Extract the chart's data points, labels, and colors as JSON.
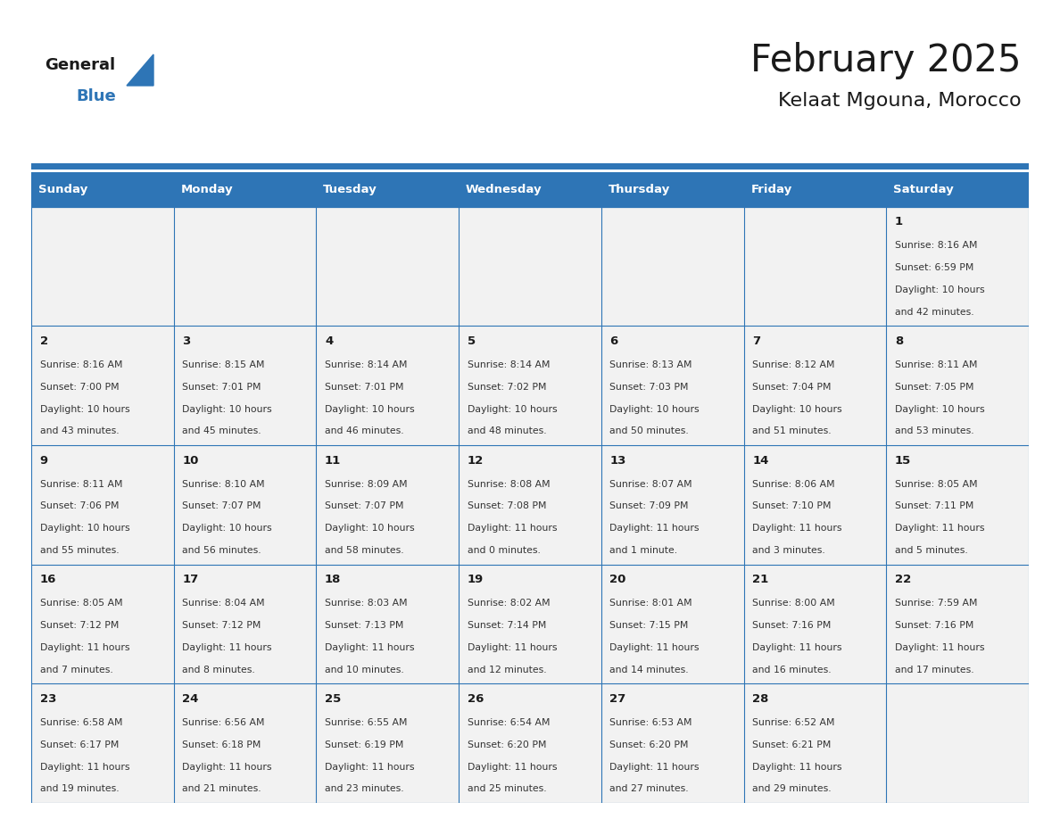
{
  "title": "February 2025",
  "subtitle": "Kelaat Mgouna, Morocco",
  "header_bg": "#2E75B6",
  "header_text": "#FFFFFF",
  "cell_bg": "#F2F2F2",
  "border_color": "#2E75B6",
  "day_headers": [
    "Sunday",
    "Monday",
    "Tuesday",
    "Wednesday",
    "Thursday",
    "Friday",
    "Saturday"
  ],
  "title_color": "#1a1a1a",
  "subtitle_color": "#1a1a1a",
  "day_number_color": "#1a1a1a",
  "cell_text_color": "#333333",
  "logo_general_color": "#1a1a1a",
  "logo_blue_color": "#2E75B6",
  "calendar_data": {
    "1": {
      "sunrise": "8:16 AM",
      "sunset": "6:59 PM",
      "daylight_line1": "Daylight: 10 hours",
      "daylight_line2": "and 42 minutes."
    },
    "2": {
      "sunrise": "8:16 AM",
      "sunset": "7:00 PM",
      "daylight_line1": "Daylight: 10 hours",
      "daylight_line2": "and 43 minutes."
    },
    "3": {
      "sunrise": "8:15 AM",
      "sunset": "7:01 PM",
      "daylight_line1": "Daylight: 10 hours",
      "daylight_line2": "and 45 minutes."
    },
    "4": {
      "sunrise": "8:14 AM",
      "sunset": "7:01 PM",
      "daylight_line1": "Daylight: 10 hours",
      "daylight_line2": "and 46 minutes."
    },
    "5": {
      "sunrise": "8:14 AM",
      "sunset": "7:02 PM",
      "daylight_line1": "Daylight: 10 hours",
      "daylight_line2": "and 48 minutes."
    },
    "6": {
      "sunrise": "8:13 AM",
      "sunset": "7:03 PM",
      "daylight_line1": "Daylight: 10 hours",
      "daylight_line2": "and 50 minutes."
    },
    "7": {
      "sunrise": "8:12 AM",
      "sunset": "7:04 PM",
      "daylight_line1": "Daylight: 10 hours",
      "daylight_line2": "and 51 minutes."
    },
    "8": {
      "sunrise": "8:11 AM",
      "sunset": "7:05 PM",
      "daylight_line1": "Daylight: 10 hours",
      "daylight_line2": "and 53 minutes."
    },
    "9": {
      "sunrise": "8:11 AM",
      "sunset": "7:06 PM",
      "daylight_line1": "Daylight: 10 hours",
      "daylight_line2": "and 55 minutes."
    },
    "10": {
      "sunrise": "8:10 AM",
      "sunset": "7:07 PM",
      "daylight_line1": "Daylight: 10 hours",
      "daylight_line2": "and 56 minutes."
    },
    "11": {
      "sunrise": "8:09 AM",
      "sunset": "7:07 PM",
      "daylight_line1": "Daylight: 10 hours",
      "daylight_line2": "and 58 minutes."
    },
    "12": {
      "sunrise": "8:08 AM",
      "sunset": "7:08 PM",
      "daylight_line1": "Daylight: 11 hours",
      "daylight_line2": "and 0 minutes."
    },
    "13": {
      "sunrise": "8:07 AM",
      "sunset": "7:09 PM",
      "daylight_line1": "Daylight: 11 hours",
      "daylight_line2": "and 1 minute."
    },
    "14": {
      "sunrise": "8:06 AM",
      "sunset": "7:10 PM",
      "daylight_line1": "Daylight: 11 hours",
      "daylight_line2": "and 3 minutes."
    },
    "15": {
      "sunrise": "8:05 AM",
      "sunset": "7:11 PM",
      "daylight_line1": "Daylight: 11 hours",
      "daylight_line2": "and 5 minutes."
    },
    "16": {
      "sunrise": "8:05 AM",
      "sunset": "7:12 PM",
      "daylight_line1": "Daylight: 11 hours",
      "daylight_line2": "and 7 minutes."
    },
    "17": {
      "sunrise": "8:04 AM",
      "sunset": "7:12 PM",
      "daylight_line1": "Daylight: 11 hours",
      "daylight_line2": "and 8 minutes."
    },
    "18": {
      "sunrise": "8:03 AM",
      "sunset": "7:13 PM",
      "daylight_line1": "Daylight: 11 hours",
      "daylight_line2": "and 10 minutes."
    },
    "19": {
      "sunrise": "8:02 AM",
      "sunset": "7:14 PM",
      "daylight_line1": "Daylight: 11 hours",
      "daylight_line2": "and 12 minutes."
    },
    "20": {
      "sunrise": "8:01 AM",
      "sunset": "7:15 PM",
      "daylight_line1": "Daylight: 11 hours",
      "daylight_line2": "and 14 minutes."
    },
    "21": {
      "sunrise": "8:00 AM",
      "sunset": "7:16 PM",
      "daylight_line1": "Daylight: 11 hours",
      "daylight_line2": "and 16 minutes."
    },
    "22": {
      "sunrise": "7:59 AM",
      "sunset": "7:16 PM",
      "daylight_line1": "Daylight: 11 hours",
      "daylight_line2": "and 17 minutes."
    },
    "23": {
      "sunrise": "6:58 AM",
      "sunset": "6:17 PM",
      "daylight_line1": "Daylight: 11 hours",
      "daylight_line2": "and 19 minutes."
    },
    "24": {
      "sunrise": "6:56 AM",
      "sunset": "6:18 PM",
      "daylight_line1": "Daylight: 11 hours",
      "daylight_line2": "and 21 minutes."
    },
    "25": {
      "sunrise": "6:55 AM",
      "sunset": "6:19 PM",
      "daylight_line1": "Daylight: 11 hours",
      "daylight_line2": "and 23 minutes."
    },
    "26": {
      "sunrise": "6:54 AM",
      "sunset": "6:20 PM",
      "daylight_line1": "Daylight: 11 hours",
      "daylight_line2": "and 25 minutes."
    },
    "27": {
      "sunrise": "6:53 AM",
      "sunset": "6:20 PM",
      "daylight_line1": "Daylight: 11 hours",
      "daylight_line2": "and 27 minutes."
    },
    "28": {
      "sunrise": "6:52 AM",
      "sunset": "6:21 PM",
      "daylight_line1": "Daylight: 11 hours",
      "daylight_line2": "and 29 minutes."
    }
  },
  "weeks": [
    [
      null,
      null,
      null,
      null,
      null,
      null,
      1
    ],
    [
      2,
      3,
      4,
      5,
      6,
      7,
      8
    ],
    [
      9,
      10,
      11,
      12,
      13,
      14,
      15
    ],
    [
      16,
      17,
      18,
      19,
      20,
      21,
      22
    ],
    [
      23,
      24,
      25,
      26,
      27,
      28,
      null
    ]
  ]
}
